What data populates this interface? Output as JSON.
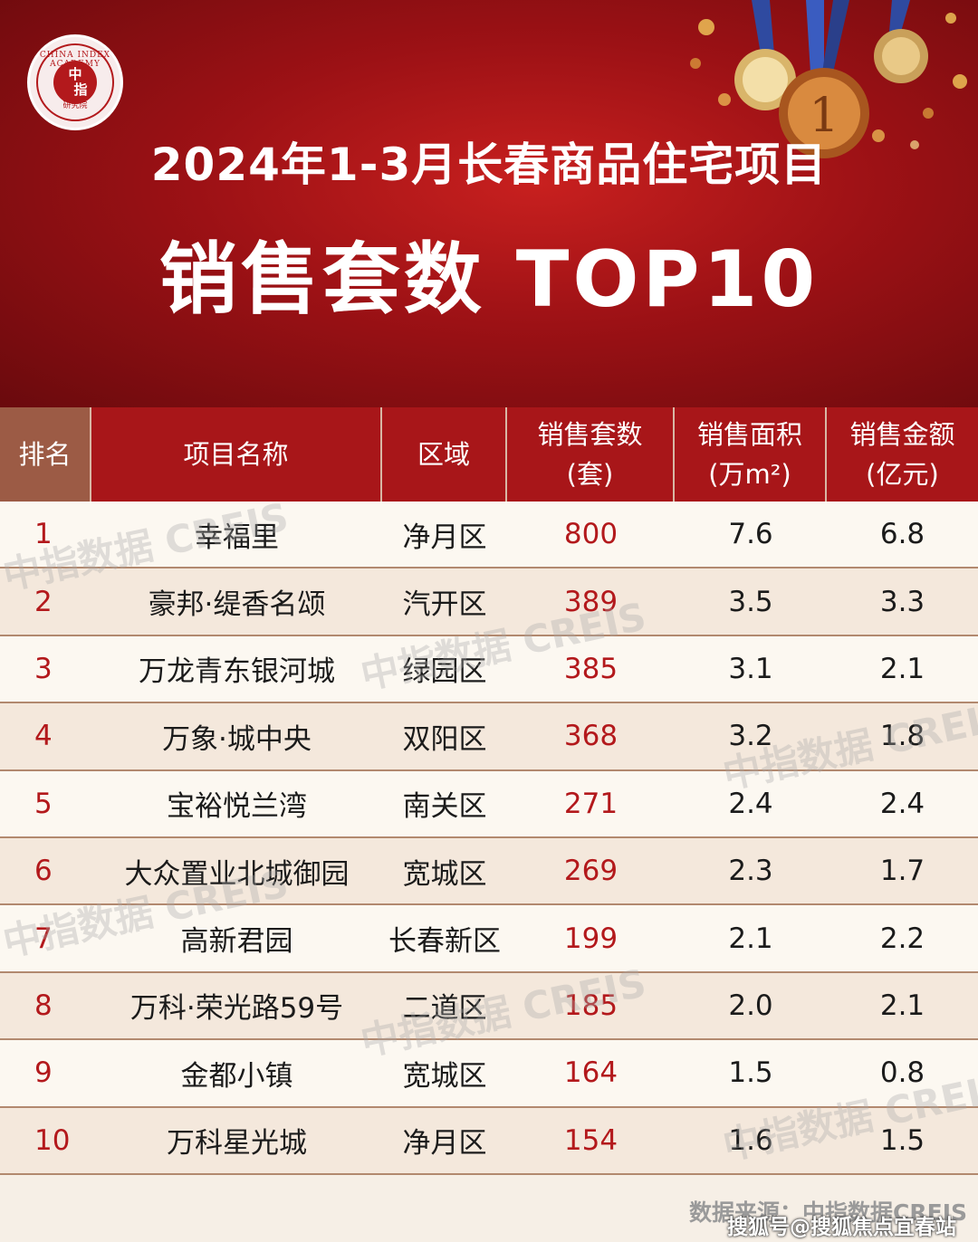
{
  "header": {
    "title_line1": "2024年1-3月长春商品住宅项目",
    "title_line2": "销售套数 TOP10",
    "logo": {
      "ring_text": "CHINA INDEX ACADEMY",
      "core_top": "中",
      "core_bottom": "指",
      "bottom_text": "研究院"
    }
  },
  "chart_data": {
    "type": "table",
    "columns": [
      "排名",
      "项目名称",
      "区域",
      "销售套数\n(套)",
      "销售面积\n(万m²)",
      "销售金额\n(亿元)"
    ],
    "column_lines": [
      [
        "排名"
      ],
      [
        "项目名称"
      ],
      [
        "区域"
      ],
      [
        "销售套数",
        "(套)"
      ],
      [
        "销售面积",
        "(万m²)"
      ],
      [
        "销售金额",
        "(亿元)"
      ]
    ],
    "rows": [
      {
        "rank": "1",
        "name": "幸福里",
        "district": "净月区",
        "units": "800",
        "area": "7.6",
        "amount": "6.8"
      },
      {
        "rank": "2",
        "name": "豪邦·缇香名颂",
        "district": "汽开区",
        "units": "389",
        "area": "3.5",
        "amount": "3.3"
      },
      {
        "rank": "3",
        "name": "万龙青东银河城",
        "district": "绿园区",
        "units": "385",
        "area": "3.1",
        "amount": "2.1"
      },
      {
        "rank": "4",
        "name": "万象·城中央",
        "district": "双阳区",
        "units": "368",
        "area": "3.2",
        "amount": "1.8"
      },
      {
        "rank": "5",
        "name": "宝裕悦兰湾",
        "district": "南关区",
        "units": "271",
        "area": "2.4",
        "amount": "2.4"
      },
      {
        "rank": "6",
        "name": "大众置业北城御园",
        "district": "宽城区",
        "units": "269",
        "area": "2.3",
        "amount": "1.7"
      },
      {
        "rank": "7",
        "name": "高新君园",
        "district": "长春新区",
        "units": "199",
        "area": "2.1",
        "amount": "2.2"
      },
      {
        "rank": "8",
        "name": "万科·荣光路59号",
        "district": "二道区",
        "units": "185",
        "area": "2.0",
        "amount": "2.1"
      },
      {
        "rank": "9",
        "name": "金都小镇",
        "district": "宽城区",
        "units": "164",
        "area": "1.5",
        "amount": "0.8"
      },
      {
        "rank": "10",
        "name": "万科星光城",
        "district": "净月区",
        "units": "154",
        "area": "1.6",
        "amount": "1.5"
      }
    ]
  },
  "watermark_text": "中指数据 CREIS",
  "footer": {
    "source": "数据来源：中指数据CREIS",
    "credit": "搜狐号@搜狐焦点宜春站"
  },
  "colors": {
    "header_red": "#9c1115",
    "table_header": "#a81619",
    "rank_header": "#9c5b45",
    "accent_red": "#b3191c"
  }
}
